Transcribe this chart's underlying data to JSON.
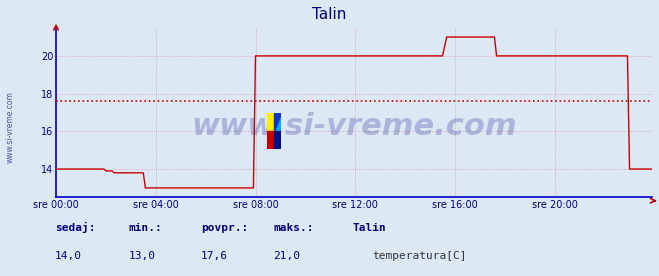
{
  "title": "Talin",
  "title_color": "#000080",
  "bg_color": "#dce9f5",
  "plot_bg_color": "#dce9f5",
  "line_color": "#cc0000",
  "avg_value": 17.6,
  "ylim": [
    12.5,
    21.5
  ],
  "yticks": [
    14,
    16,
    18,
    20
  ],
  "tick_color": "#000080",
  "grid_color": "#cc0000",
  "grid_alpha": 0.35,
  "watermark": "www.si-vreme.com",
  "watermark_color": "#000080",
  "watermark_alpha": 0.22,
  "watermark_fontsize": 22,
  "sidebar_text": "www.si-vreme.com",
  "footer_labels": [
    "sedaj:",
    "min.:",
    "povpr.:",
    "maks.:",
    "Talin"
  ],
  "footer_values": [
    "14,0",
    "13,0",
    "17,6",
    "21,0"
  ],
  "footer_legend": "temperatura[C]",
  "footer_legend_color": "#cc0000",
  "x_tick_labels": [
    "sre 00:00",
    "sre 04:00",
    "sre 08:00",
    "sre 12:00",
    "sre 16:00",
    "sre 20:00"
  ],
  "x_tick_positions": [
    0,
    48,
    96,
    144,
    192,
    240
  ],
  "total_points": 288,
  "temperature_data": [
    14.0,
    14.0,
    14.0,
    14.0,
    14.0,
    14.0,
    14.0,
    14.0,
    14.0,
    14.0,
    14.0,
    14.0,
    14.0,
    14.0,
    14.0,
    14.0,
    14.0,
    14.0,
    14.0,
    14.0,
    14.0,
    14.0,
    14.0,
    14.0,
    13.9,
    13.9,
    13.9,
    13.9,
    13.8,
    13.8,
    13.8,
    13.8,
    13.8,
    13.8,
    13.8,
    13.8,
    13.8,
    13.8,
    13.8,
    13.8,
    13.8,
    13.8,
    13.8,
    13.0,
    13.0,
    13.0,
    13.0,
    13.0,
    13.0,
    13.0,
    13.0,
    13.0,
    13.0,
    13.0,
    13.0,
    13.0,
    13.0,
    13.0,
    13.0,
    13.0,
    13.0,
    13.0,
    13.0,
    13.0,
    13.0,
    13.0,
    13.0,
    13.0,
    13.0,
    13.0,
    13.0,
    13.0,
    13.0,
    13.0,
    13.0,
    13.0,
    13.0,
    13.0,
    13.0,
    13.0,
    13.0,
    13.0,
    13.0,
    13.0,
    13.0,
    13.0,
    13.0,
    13.0,
    13.0,
    13.0,
    13.0,
    13.0,
    13.0,
    13.0,
    13.0,
    13.0,
    20.0,
    20.0,
    20.0,
    20.0,
    20.0,
    20.0,
    20.0,
    20.0,
    20.0,
    20.0,
    20.0,
    20.0,
    20.0,
    20.0,
    20.0,
    20.0,
    20.0,
    20.0,
    20.0,
    20.0,
    20.0,
    20.0,
    20.0,
    20.0,
    20.0,
    20.0,
    20.0,
    20.0,
    20.0,
    20.0,
    20.0,
    20.0,
    20.0,
    20.0,
    20.0,
    20.0,
    20.0,
    20.0,
    20.0,
    20.0,
    20.0,
    20.0,
    20.0,
    20.0,
    20.0,
    20.0,
    20.0,
    20.0,
    20.0,
    20.0,
    20.0,
    20.0,
    20.0,
    20.0,
    20.0,
    20.0,
    20.0,
    20.0,
    20.0,
    20.0,
    20.0,
    20.0,
    20.0,
    20.0,
    20.0,
    20.0,
    20.0,
    20.0,
    20.0,
    20.0,
    20.0,
    20.0,
    20.0,
    20.0,
    20.0,
    20.0,
    20.0,
    20.0,
    20.0,
    20.0,
    20.0,
    20.0,
    20.0,
    20.0,
    20.0,
    20.0,
    20.0,
    20.0,
    20.0,
    20.0,
    20.0,
    20.5,
    21.0,
    21.0,
    21.0,
    21.0,
    21.0,
    21.0,
    21.0,
    21.0,
    21.0,
    21.0,
    21.0,
    21.0,
    21.0,
    21.0,
    21.0,
    21.0,
    21.0,
    21.0,
    21.0,
    21.0,
    21.0,
    21.0,
    21.0,
    21.0,
    20.0,
    20.0,
    20.0,
    20.0,
    20.0,
    20.0,
    20.0,
    20.0,
    20.0,
    20.0,
    20.0,
    20.0,
    20.0,
    20.0,
    20.0,
    20.0,
    20.0,
    20.0,
    20.0,
    20.0,
    20.0,
    20.0,
    20.0,
    20.0,
    20.0,
    20.0,
    20.0,
    20.0,
    20.0,
    20.0,
    20.0,
    20.0,
    20.0,
    20.0,
    20.0,
    20.0,
    20.0,
    20.0,
    20.0,
    20.0,
    20.0,
    20.0,
    20.0,
    20.0,
    20.0,
    20.0,
    20.0,
    20.0,
    20.0,
    20.0,
    20.0,
    20.0,
    20.0,
    20.0,
    20.0,
    20.0,
    20.0,
    20.0,
    20.0,
    20.0,
    20.0,
    20.0,
    20.0,
    20.0,
    14.0,
    14.0,
    14.0,
    14.0,
    14.0,
    14.0,
    14.0,
    14.0,
    14.0,
    14.0,
    14.0,
    14.0
  ]
}
